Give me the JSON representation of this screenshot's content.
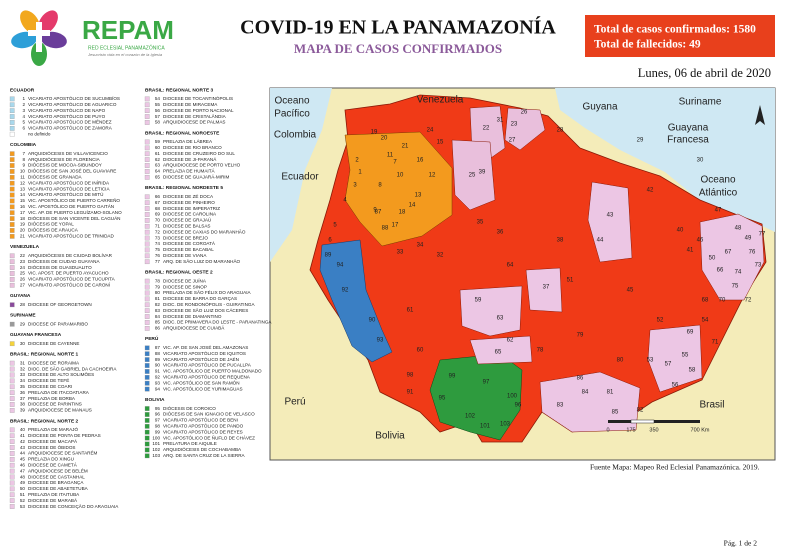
{
  "header": {
    "logo_title": "REPAM",
    "logo_subtitle": "RED ECLESIAL PANAMAZÓNICA",
    "logo_tagline": "Jesucristo vida en el corazón de la Iglesia",
    "title": "COVID-19 EN LA PANAMAZONÍA",
    "subtitle": "MAPA DE CASOS CONFIRMADOS"
  },
  "stats": [
    "Total de casos confirmados: 1580",
    "Total de fallecidos: 49"
  ],
  "date": "Lunes, 06 de abril de 2020",
  "legend": {
    "columns": [
      [
        {
          "heading": "ECUADOR",
          "color": "#a8d8ec",
          "items": [
            {
              "num": 1,
              "name": "VICARIATO APOSTÓLICO DE SUCUMBÍOS"
            },
            {
              "num": 2,
              "name": "VICARIATO APOSTÓLICO DE AGUARICO"
            },
            {
              "num": 3,
              "name": "VICARIATO APOSTÓLICO DE NAPO"
            },
            {
              "num": 4,
              "name": "VICARIATO APOSTÓLICO DE PUYO"
            },
            {
              "num": 5,
              "name": "VICARIATO APOSTÓLICO DE MÉNDEZ"
            },
            {
              "num": 6,
              "name": "VICARIATO APOSTÓLICO DE ZAMORA"
            },
            {
              "name": "no definido",
              "color": "#ffffff"
            }
          ]
        },
        {
          "heading": "COLOMBIA",
          "color": "#f39a1e",
          "items": [
            {
              "num": 7,
              "name": "ARQUIDIÓCESIS DE VILLAVICENCIO"
            },
            {
              "num": 8,
              "name": "ARQUIDIÓCESIS DE FLORENCIA"
            },
            {
              "num": 9,
              "name": "DIÓCESIS DE MOCOA-SIBUNDOY"
            },
            {
              "num": 10,
              "name": "DIÓCESIS DE SAN JOSÉ DEL GUAVIARE"
            },
            {
              "num": 11,
              "name": "DIÓCESIS DE GRANADA"
            },
            {
              "num": 12,
              "name": "VICARIATO APOSTÓLICO DE INÍRIDA"
            },
            {
              "num": 13,
              "name": "VICARIATO APOSTÓLICO DE LETICIA"
            },
            {
              "num": 14,
              "name": "VICARIATO APOSTÓLICO DE MITÚ"
            },
            {
              "num": 15,
              "name": "VIC. APOSTÓLICO DE PUERTO CARREÑO"
            },
            {
              "num": 16,
              "name": "VIC. APOSTÓLICO DE PUERTO GAITÁN"
            },
            {
              "num": 17,
              "name": "VIC. AP. DE PUERTO LEGUÍZAMO-SOLANO"
            },
            {
              "num": 18,
              "name": "DIÓCESIS DE SAN VICENTE DEL CAGUÁN"
            },
            {
              "num": 19,
              "name": "DIÓCESIS DE YOPAL"
            },
            {
              "num": 20,
              "name": "DIÓCESIS DE ARAUCA"
            },
            {
              "num": 21,
              "name": "VICARIATO APOSTÓLICO DE TRINIDAD"
            }
          ]
        },
        {
          "heading": "VENEZUELA",
          "color": "#e9bfdc",
          "items": [
            {
              "num": 22,
              "name": "ARQUIDIÓCESIS DE CIUDAD BOLÍVAR"
            },
            {
              "num": 23,
              "name": "DIÓCESIS DE CIUDAD GUAYANA"
            },
            {
              "num": 24,
              "name": "DIÓCESIS DE GUASDUALITO"
            },
            {
              "num": 25,
              "name": "VIC. APOST. DE PUERTO AYACUCHO"
            },
            {
              "num": 26,
              "name": "VICARIATO APOSTÓLICO DE TUCUPITA"
            },
            {
              "num": 27,
              "name": "VICARIATO APOSTÓLICO DE CARONÍ"
            }
          ]
        },
        {
          "heading": "GUYANA",
          "color": "#8a4a9c",
          "items": [
            {
              "num": 28,
              "name": "DIOCESE OF GEORGETOWN"
            }
          ]
        },
        {
          "heading": "SURINAME",
          "color": "#9a9a9a",
          "items": [
            {
              "num": 29,
              "name": "DIOCESE OF PARAMARIBO"
            }
          ]
        },
        {
          "heading": "GUAYANA FRANCESA",
          "color": "#f5d33a",
          "items": [
            {
              "num": 30,
              "name": "DIOCESE DE CAYENNE"
            }
          ]
        },
        {
          "heading": "BRASIL: REGIONAL NORTE 1",
          "color": "#ecc6e4",
          "items": [
            {
              "num": 31,
              "name": "DIOCESE DE RORAIMA"
            },
            {
              "num": 32,
              "name": "DIOC. DE SÃO GABRIEL DA CACHOEIRA"
            },
            {
              "num": 33,
              "name": "DIOCESE DE ALTO SOLIMÕES"
            },
            {
              "num": 34,
              "name": "DIOCESE DE TEFÉ"
            },
            {
              "num": 35,
              "name": "DIOCESE DE COARI"
            },
            {
              "num": 36,
              "name": "PRELAZIA DE ITACOATIARA"
            },
            {
              "num": 37,
              "name": "PRELAZIA DE BORBA"
            },
            {
              "num": 38,
              "name": "DIOCESE DE PARINTINS"
            },
            {
              "num": 39,
              "name": "ARQUIDIOCESE DE MANAUS"
            }
          ]
        },
        {
          "heading": "BRASIL: REGIONAL NORTE 2",
          "color": "#ecc6e4",
          "items": [
            {
              "num": 40,
              "name": "PRELAZIA DE MARAJÓ"
            },
            {
              "num": 41,
              "name": "DIOCESE DE PONTA DE PEDRAS"
            },
            {
              "num": 42,
              "name": "DIOCESE DE MACAPÁ"
            },
            {
              "num": 43,
              "name": "DIOCESE DE ÓBIDOS"
            },
            {
              "num": 44,
              "name": "ARQUIDIOCESE DE SANTARÉM"
            },
            {
              "num": 45,
              "name": "PRELAZIA DO XINGU"
            },
            {
              "num": 46,
              "name": "DIOCESE DE CAMETÁ"
            },
            {
              "num": 47,
              "name": "ARQUIDIOCESE DE BELÉM"
            },
            {
              "num": 48,
              "name": "DIOCESE DE CASTANHAL"
            },
            {
              "num": 49,
              "name": "DIOCESE DE BRAGANÇA"
            },
            {
              "num": 50,
              "name": "DIOCESE DE ABAETETUBA"
            },
            {
              "num": 51,
              "name": "PRELAZIA DE ITAITUBA"
            },
            {
              "num": 52,
              "name": "DIOCESE DE MARABÁ"
            },
            {
              "num": 53,
              "name": "DIOCESE DE CONCEIÇÃO DO ARAGUAIA"
            }
          ]
        }
      ],
      [
        {
          "heading": "BRASIL: REGIONAL NORTE 3",
          "color": "#ecc6e4",
          "items": [
            {
              "num": 54,
              "name": "DIOCESE DE TOCANTINÓPOLIS"
            },
            {
              "num": 55,
              "name": "DIOCESE DE MIRACEMA"
            },
            {
              "num": 56,
              "name": "DIOCESE DE PORTO NACIONAL"
            },
            {
              "num": 57,
              "name": "DIOCESE DE CRISTALÂNDIA"
            },
            {
              "num": 58,
              "name": "ARQUIDIOCESE DE PALMAS"
            }
          ]
        },
        {
          "heading": "BRASIL: REGIONAL NOROESTE",
          "color": "#ecc6e4",
          "items": [
            {
              "num": 59,
              "name": "PRELAZIA DE LÁBREA"
            },
            {
              "num": 60,
              "name": "DIOCESE DE RIO BRANCO"
            },
            {
              "num": 61,
              "name": "DIOCESE DE CRUZEIRO DO SUL"
            },
            {
              "num": 62,
              "name": "DIOCESE DE JI-PARANÁ"
            },
            {
              "num": 63,
              "name": "ARQUIDIOCESE DE PORTO VELHO"
            },
            {
              "num": 64,
              "name": "PRELAZIA DE HUMAITÁ"
            },
            {
              "num": 65,
              "name": "DIOCESE DE GUAJARÁ-MIRIM"
            }
          ]
        },
        {
          "heading": "BRASIL: REGIONAL NORDESTE 5",
          "color": "#ecc6e4",
          "items": [
            {
              "num": 66,
              "name": "DIOCESE DE ZÉ DOCA"
            },
            {
              "num": 67,
              "name": "DIOCESE DE PINHEIRO"
            },
            {
              "num": 68,
              "name": "DIOCESE DE IMPERATRIZ"
            },
            {
              "num": 69,
              "name": "DIOCESE DE CAROLINA"
            },
            {
              "num": 70,
              "name": "DIOCESE DE GRAJAÚ"
            },
            {
              "num": 71,
              "name": "DIOCESE DE BALSAS"
            },
            {
              "num": 72,
              "name": "DIOCESE DE CAXIAS DO MARANHÃO"
            },
            {
              "num": 73,
              "name": "DIOCESE DE BREJO"
            },
            {
              "num": 74,
              "name": "DIOCESE DE COROATÁ"
            },
            {
              "num": 75,
              "name": "DIOCESE DE BACABAL"
            },
            {
              "num": 76,
              "name": "DIOCESE DE VIANA"
            },
            {
              "num": 77,
              "name": "ARQ. DE SÃO LUIZ DO MARANHÃO"
            }
          ]
        },
        {
          "heading": "BRASIL: REGIONAL OESTE 2",
          "color": "#ecc6e4",
          "items": [
            {
              "num": 78,
              "name": "DIOCESE DE JUÍNA"
            },
            {
              "num": 79,
              "name": "DIOCESE DE SINOP"
            },
            {
              "num": 80,
              "name": "PRELAZIA DE SÃO FÉLIX DO ARAGUAIA"
            },
            {
              "num": 81,
              "name": "DIOCESE DE BARRA DO GARÇAS"
            },
            {
              "num": 82,
              "name": "DIOC. DE RONDONÓPOLIS - GUIRATINGA"
            },
            {
              "num": 83,
              "name": "DIOCESE DE SÃO LUIZ DOS CÁCERES"
            },
            {
              "num": 84,
              "name": "DIOCESE DE DIAMANTINO"
            },
            {
              "num": 85,
              "name": "DIOC. DE PRIMAVERA DO LESTE - PARANATINGA"
            },
            {
              "num": 86,
              "name": "ARQUIDIOCESE DE CUIABÁ"
            }
          ]
        },
        {
          "heading": "PERÚ",
          "color": "#3a7fc4",
          "items": [
            {
              "num": 87,
              "name": "VIC. AP. DE SAN JOSÉ DEL AMAZONAS"
            },
            {
              "num": 88,
              "name": "VICARIATO APOSTÓLICO DE IQUITOS"
            },
            {
              "num": 89,
              "name": "VICARIATO APOSTÓLICO DE JAÉN"
            },
            {
              "num": 90,
              "name": "VICARIATO APOSTÓLICO DE PUCALLPA"
            },
            {
              "num": 91,
              "name": "VIC. APOSTÓLICO DE PUERTO MALDONADO"
            },
            {
              "num": 92,
              "name": "VICARIATO APOSTÓLICO DE REQUENA"
            },
            {
              "num": 93,
              "name": "VIC. APOSTÓLICO DE SAN RAMÓN"
            },
            {
              "num": 94,
              "name": "VIC. APOSTÓLICO DE YURIMAGUAS"
            }
          ]
        },
        {
          "heading": "BOLIVIA",
          "color": "#2e9b3e",
          "items": [
            {
              "num": 95,
              "name": "DIÓCESIS DE COROICO"
            },
            {
              "num": 96,
              "name": "DIÓCESIS DE SAN IGNACIO DE VELASCO"
            },
            {
              "num": 97,
              "name": "VICARIATO APOSTÓLICO DE BENI"
            },
            {
              "num": 98,
              "name": "VICARIATO APOSTÓLICO DE PANDO"
            },
            {
              "num": 99,
              "name": "VICARIATO APOSTÓLICO DE REYES"
            },
            {
              "num": 100,
              "name": "VIC. APOSTÓLICO DE ÑUFLO DE CHÁVEZ"
            },
            {
              "num": 101,
              "name": "PRELATURA DE AIQUILE"
            },
            {
              "num": 102,
              "name": "ARQUIDIÓCESIS DE COCHABAMBA"
            },
            {
              "num": 103,
              "name": "ARQ. DE SANTA CRUZ DE LA SIERRA"
            }
          ]
        }
      ]
    ]
  },
  "map": {
    "place_names": [
      "Venezuela",
      "Colombia",
      "Ecuador",
      "Guyana",
      "Suriname",
      "Guayana",
      "Francesa",
      "Oceano",
      "Pacífico",
      "Oceano",
      "Atlántico",
      "Perú",
      "Bolivia",
      "Brasil"
    ],
    "region_numbers": [
      19,
      20,
      24,
      26,
      22,
      23,
      27,
      25,
      28,
      29,
      30,
      12,
      13,
      10,
      14,
      8,
      11,
      9,
      17,
      18,
      3,
      1,
      4,
      5,
      6,
      88,
      94,
      92,
      90,
      93,
      89,
      32,
      33,
      34,
      35,
      36,
      31,
      43,
      44,
      37,
      59,
      61,
      60,
      62,
      63,
      64,
      65,
      38,
      51,
      45,
      52,
      53,
      42,
      40,
      41,
      46,
      47,
      48,
      49,
      50,
      66,
      67,
      68,
      69,
      70,
      71,
      72,
      73,
      74,
      75,
      76,
      77,
      54,
      55,
      56,
      57,
      58,
      78,
      79,
      80,
      81,
      82,
      83,
      84,
      85,
      86,
      95,
      96,
      97,
      98,
      99,
      100,
      101,
      102,
      103,
      91,
      15,
      16,
      21,
      7,
      2,
      39,
      87
    ],
    "scale_labels": [
      "0",
      "175",
      "350",
      "700 Km"
    ],
    "source": "Fuente Mapa: Mapeo Red Eclesial Panamazónica. 2019."
  },
  "footer": "Pág. 1 de 2"
}
